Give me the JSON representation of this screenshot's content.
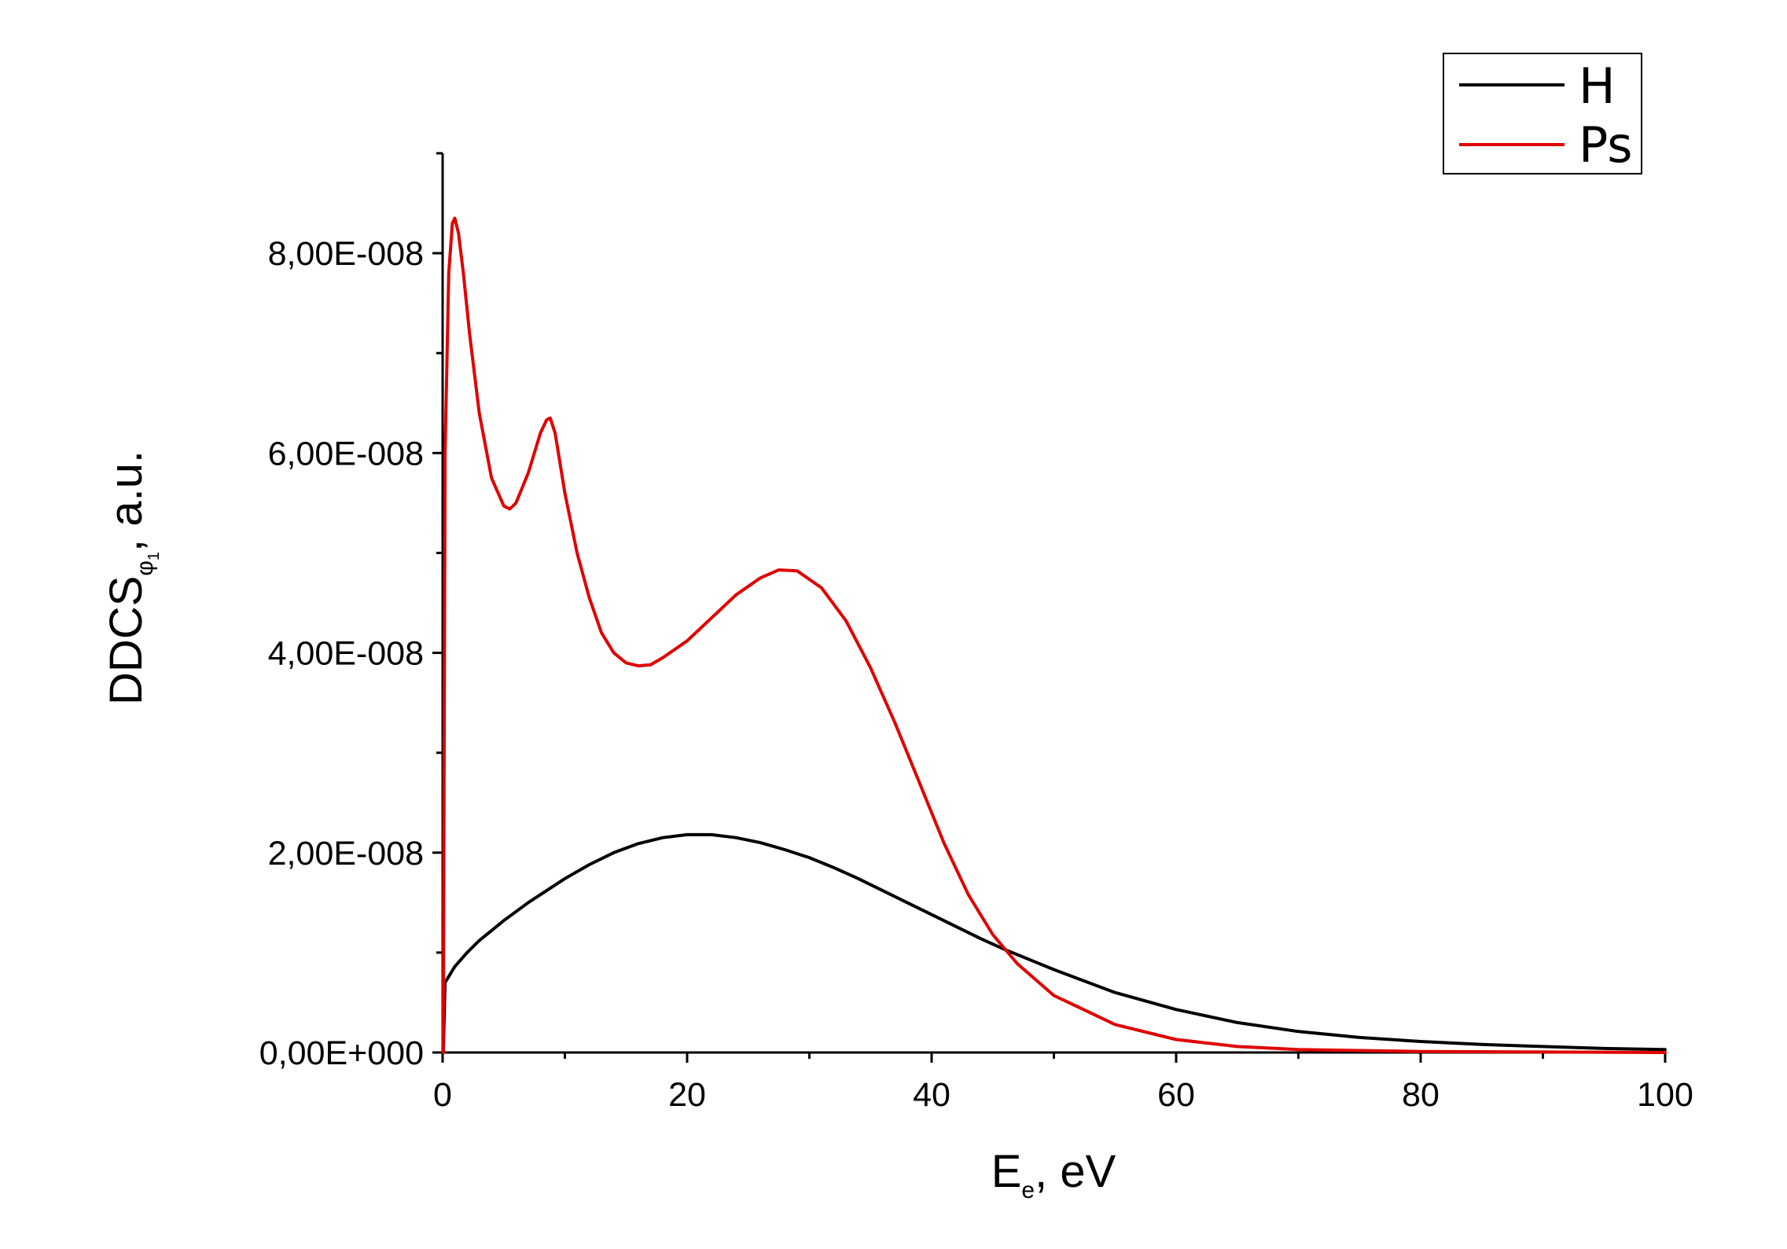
{
  "chart_data": {
    "type": "line",
    "xlabel": {
      "main": "E",
      "sub": "e",
      "rest": ", eV"
    },
    "ylabel": {
      "main": "DDCS",
      "sub": "φ",
      "subsub": "1",
      "rest": ", a.u."
    },
    "xlim": [
      0,
      100
    ],
    "ylim": [
      0,
      9e-08
    ],
    "x_ticks": [
      0,
      20,
      40,
      60,
      80,
      100
    ],
    "x_tick_labels": [
      "0",
      "20",
      "40",
      "60",
      "80",
      "100"
    ],
    "y_ticks": [
      0,
      2e-08,
      4e-08,
      6e-08,
      8e-08
    ],
    "y_tick_labels": [
      "0,00E+000",
      "2,00E-008",
      "4,00E-008",
      "6,00E-008",
      "8,00E-008"
    ],
    "grid": false,
    "legend_position": "top-right",
    "series": [
      {
        "name": "H",
        "color": "#000000",
        "x": [
          0.05,
          0.2,
          1,
          2,
          3,
          4,
          5,
          6,
          7,
          8,
          10,
          12,
          14,
          16,
          18,
          20,
          22,
          24,
          26,
          28,
          30,
          32,
          34,
          36,
          38,
          40,
          42,
          44,
          46,
          48,
          50,
          55,
          60,
          65,
          70,
          75,
          80,
          85,
          90,
          95,
          100
        ],
        "y": [
          0,
          7e-09,
          8.6e-09,
          1e-08,
          1.12e-08,
          1.22e-08,
          1.32e-08,
          1.41e-08,
          1.5e-08,
          1.58e-08,
          1.74e-08,
          1.88e-08,
          2e-08,
          2.09e-08,
          2.15e-08,
          2.18e-08,
          2.18e-08,
          2.15e-08,
          2.1e-08,
          2.03e-08,
          1.95e-08,
          1.85e-08,
          1.74e-08,
          1.62e-08,
          1.5e-08,
          1.38e-08,
          1.26e-08,
          1.14e-08,
          1.03e-08,
          9.3e-09,
          8.3e-09,
          6e-09,
          4.3e-09,
          3e-09,
          2.1e-09,
          1.5e-09,
          1.1e-09,
          8e-10,
          6e-10,
          4e-10,
          3e-10
        ]
      },
      {
        "name": "Ps",
        "color": "#e00000",
        "x": [
          0.05,
          0.2,
          0.5,
          0.8,
          1.0,
          1.3,
          1.7,
          2.2,
          3,
          4,
          5,
          5.5,
          6,
          7,
          8,
          8.5,
          8.8,
          9.2,
          10,
          11,
          12,
          13,
          14,
          15,
          16,
          17,
          18,
          20,
          22,
          24,
          26,
          27.5,
          29,
          31,
          33,
          35,
          37,
          39,
          41,
          43,
          45,
          47,
          50,
          55,
          60,
          65,
          70,
          75,
          80,
          90,
          100
        ],
        "y": [
          0,
          6e-08,
          7.8e-08,
          8.3e-08,
          8.35e-08,
          8.2e-08,
          7.8e-08,
          7.2e-08,
          6.4e-08,
          5.75e-08,
          5.47e-08,
          5.44e-08,
          5.5e-08,
          5.8e-08,
          6.2e-08,
          6.33e-08,
          6.35e-08,
          6.2e-08,
          5.6e-08,
          5e-08,
          4.55e-08,
          4.2e-08,
          4e-08,
          3.9e-08,
          3.87e-08,
          3.88e-08,
          3.95e-08,
          4.12e-08,
          4.35e-08,
          4.58e-08,
          4.75e-08,
          4.83e-08,
          4.82e-08,
          4.65e-08,
          4.32e-08,
          3.85e-08,
          3.3e-08,
          2.7e-08,
          2.1e-08,
          1.58e-08,
          1.18e-08,
          8.9e-09,
          5.7e-09,
          2.8e-09,
          1.3e-09,
          6e-10,
          3e-10,
          2e-10,
          1e-10,
          5e-11,
          0
        ]
      }
    ]
  }
}
